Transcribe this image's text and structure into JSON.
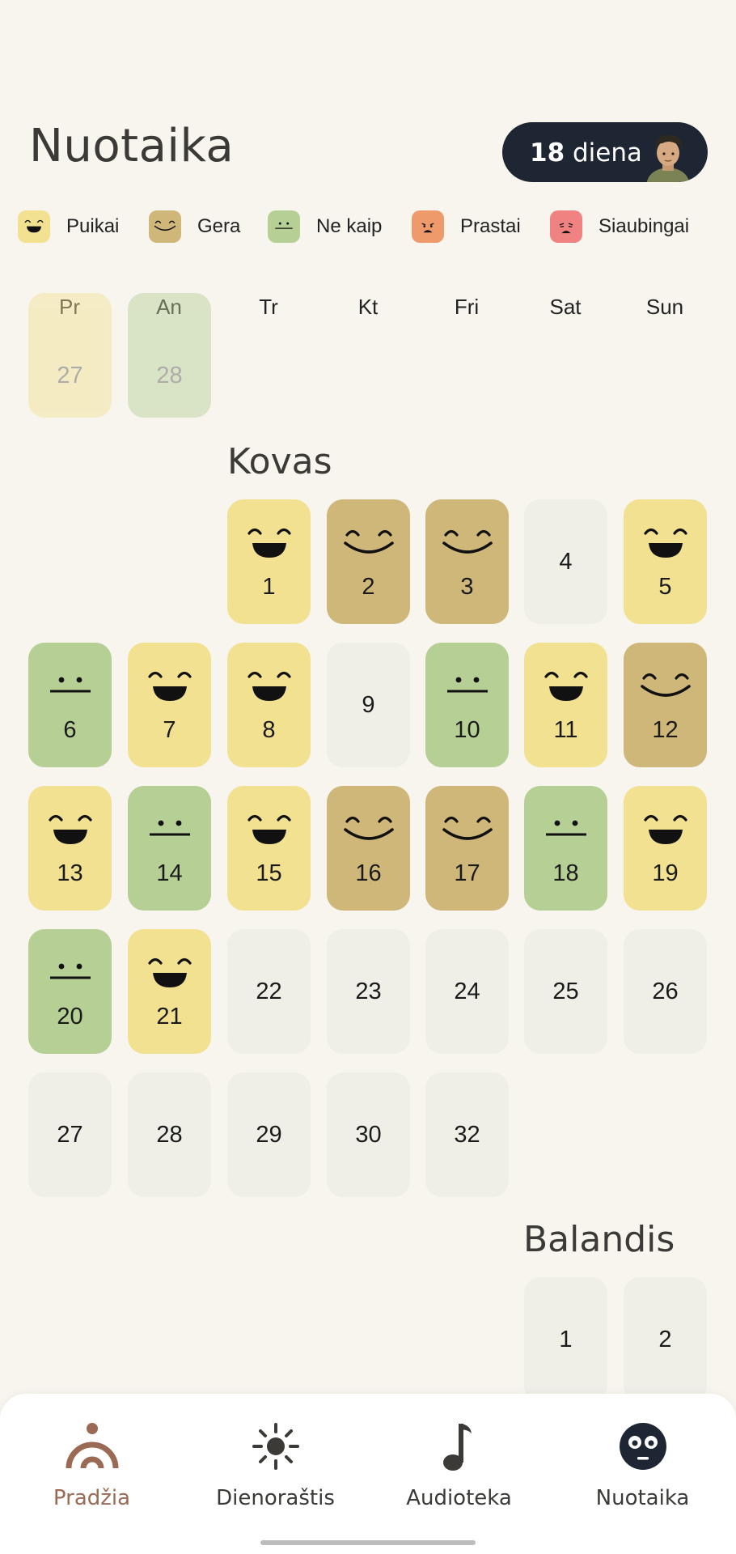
{
  "header": {
    "title": "Nuotaika",
    "streak_number": "18",
    "streak_unit": "diena"
  },
  "legend": [
    {
      "label": "Puikai",
      "color": "#f1e190",
      "icon": "grin-icon"
    },
    {
      "label": "Gera",
      "color": "#cfb77a",
      "icon": "smile-icon"
    },
    {
      "label": "Ne kaip",
      "color": "#b5cf95",
      "icon": "neutral-icon"
    },
    {
      "label": "Prastai",
      "color": "#ef9a6a",
      "icon": "sad-icon"
    },
    {
      "label": "Siaubingai",
      "color": "#f08282",
      "icon": "crying-icon"
    }
  ],
  "weekdays": [
    "Pr",
    "An",
    "Tr",
    "Kt",
    "Fri",
    "Sat",
    "Sun"
  ],
  "prev_month_tail": [
    {
      "day": "27",
      "mood": "great"
    },
    {
      "day": "28",
      "mood": "meh"
    }
  ],
  "march": {
    "name": "Kovas",
    "days": [
      {
        "day": "1",
        "mood": "great"
      },
      {
        "day": "2",
        "mood": "good"
      },
      {
        "day": "3",
        "mood": "good"
      },
      {
        "day": "4",
        "mood": ""
      },
      {
        "day": "5",
        "mood": "great"
      },
      {
        "day": "6",
        "mood": "meh"
      },
      {
        "day": "7",
        "mood": "great"
      },
      {
        "day": "8",
        "mood": "great"
      },
      {
        "day": "9",
        "mood": ""
      },
      {
        "day": "10",
        "mood": "meh"
      },
      {
        "day": "11",
        "mood": "great"
      },
      {
        "day": "12",
        "mood": "good"
      },
      {
        "day": "13",
        "mood": "great"
      },
      {
        "day": "14",
        "mood": "meh"
      },
      {
        "day": "15",
        "mood": "great"
      },
      {
        "day": "16",
        "mood": "good"
      },
      {
        "day": "17",
        "mood": "good"
      },
      {
        "day": "18",
        "mood": "meh"
      },
      {
        "day": "19",
        "mood": "great"
      },
      {
        "day": "20",
        "mood": "meh"
      },
      {
        "day": "21",
        "mood": "great"
      },
      {
        "day": "22",
        "mood": ""
      },
      {
        "day": "23",
        "mood": ""
      },
      {
        "day": "24",
        "mood": ""
      },
      {
        "day": "25",
        "mood": ""
      },
      {
        "day": "26",
        "mood": ""
      },
      {
        "day": "27",
        "mood": ""
      },
      {
        "day": "28",
        "mood": ""
      },
      {
        "day": "29",
        "mood": ""
      },
      {
        "day": "30",
        "mood": ""
      },
      {
        "day": "32",
        "mood": ""
      }
    ]
  },
  "april": {
    "name": "Balandis",
    "days": [
      {
        "day": "1",
        "mood": ""
      },
      {
        "day": "2",
        "mood": ""
      }
    ]
  },
  "tabs": [
    {
      "label": "Pradžia",
      "icon": "home-rainbow-icon",
      "active": true
    },
    {
      "label": "Dienoraštis",
      "icon": "sun-icon",
      "active": false
    },
    {
      "label": "Audioteka",
      "icon": "music-note-icon",
      "active": false
    },
    {
      "label": "Nuotaika",
      "icon": "mood-face-icon",
      "active": false
    }
  ]
}
